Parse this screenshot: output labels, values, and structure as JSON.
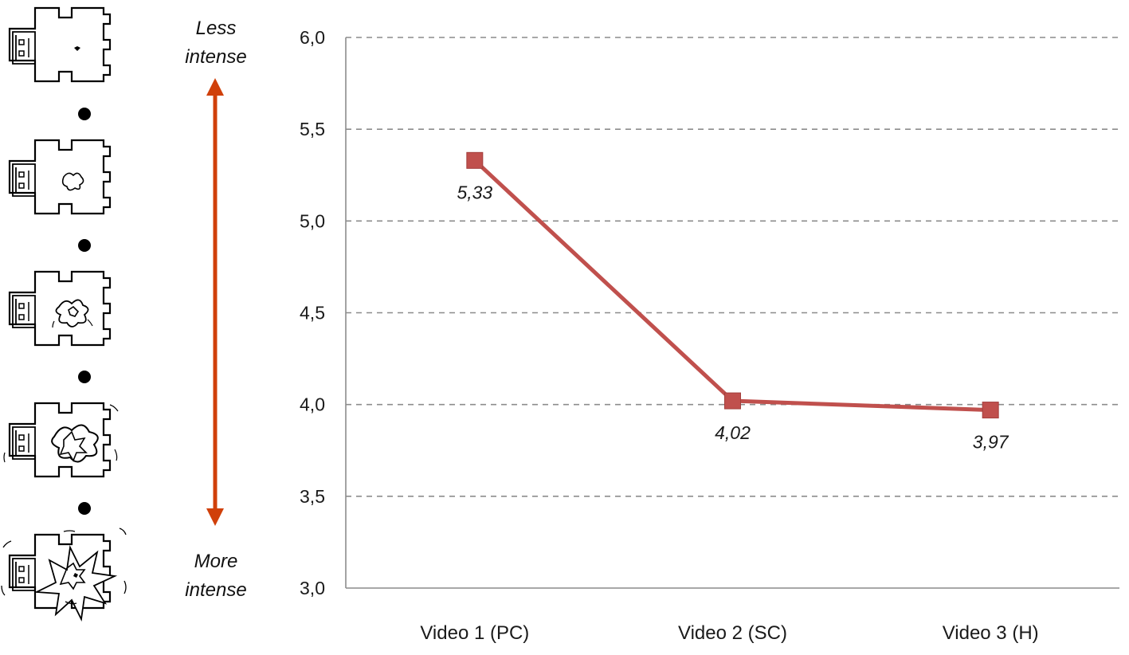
{
  "scale": {
    "top_label": [
      "Less",
      "intense"
    ],
    "bottom_label": [
      "More",
      "intense"
    ],
    "arrow_color": "#d0400a",
    "figure_icon": "torso-figure-icon",
    "burst_icons": [
      "burst-intensity-1-icon",
      "burst-intensity-2-icon",
      "burst-intensity-3-icon",
      "burst-intensity-4-icon",
      "burst-intensity-5-icon"
    ],
    "figures_count": 5
  },
  "chart_data": {
    "type": "line",
    "categories": [
      "Video 1 (PC)",
      "Video 2 (SC)",
      "Video 3 (H)"
    ],
    "series": [
      {
        "values": [
          5.33,
          4.02,
          3.97
        ],
        "labels": [
          "5,33",
          "4,02",
          "3,97"
        ],
        "color": "#c0504d"
      }
    ],
    "ylim": [
      3.0,
      6.0
    ],
    "yticks": [
      3.0,
      3.5,
      4.0,
      4.5,
      5.0,
      5.5,
      6.0
    ],
    "ytick_labels": [
      "3,0",
      "3,5",
      "4,0",
      "4,5",
      "5,0",
      "5,5",
      "6,0"
    ],
    "grid": true,
    "marker": "square",
    "title": "",
    "xlabel": "",
    "ylabel": ""
  }
}
